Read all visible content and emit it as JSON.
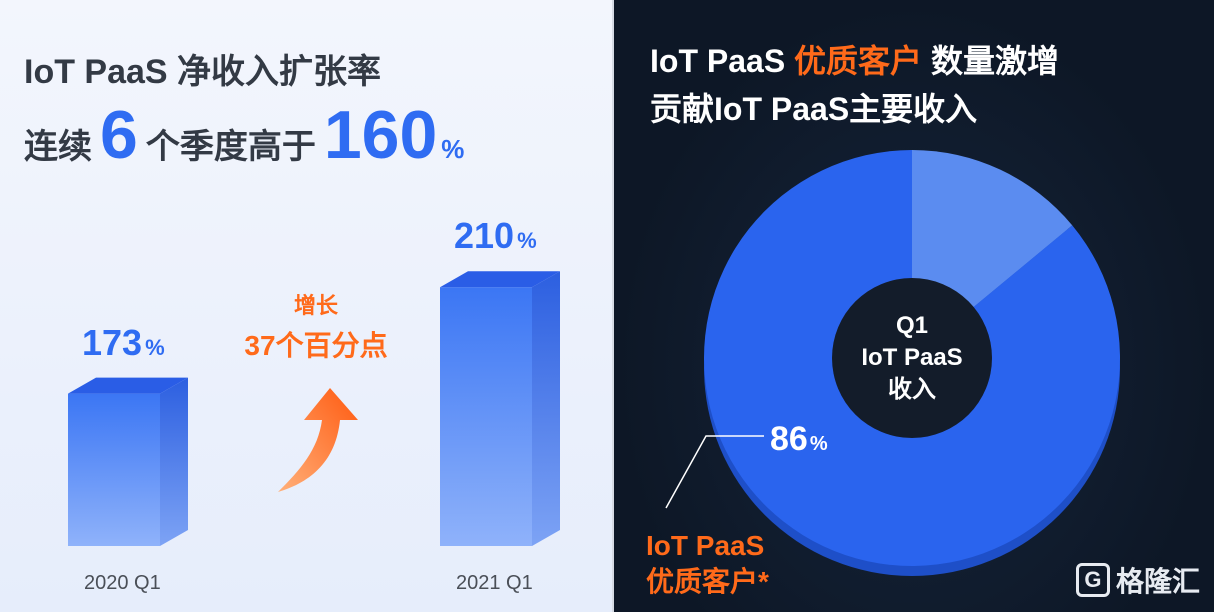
{
  "left_chart": {
    "title": "IoT PaaS  净收入扩张率",
    "subtitle_prefix": "连续",
    "subtitle_num": "6",
    "subtitle_mid": "个季度高于",
    "subtitle_value": "160",
    "subtitle_pct": "%",
    "growth_line1": "增长",
    "growth_line2": "37个百分点",
    "pct_symbol": "%"
  },
  "right_chart": {
    "title_part1": "IoT PaaS ",
    "title_highlight": "优质客户",
    "title_part2": " 数量激增",
    "title_line2": "贡献IoT PaaS主要收入",
    "center_line1": "Q1",
    "center_line2": "IoT PaaS",
    "center_line3": "收入",
    "slice_value": "86",
    "slice_pct": "%",
    "legend_line1": "IoT PaaS",
    "legend_line2": "优质客户*",
    "watermark_text": "格隆汇",
    "watermark_icon": "G"
  },
  "chart_data": [
    {
      "type": "bar",
      "categories": [
        "2020 Q1",
        "2021 Q1"
      ],
      "values": [
        173,
        210
      ],
      "unit": "%",
      "ylim": [
        0,
        230
      ],
      "colors": [
        "#2f6cf2",
        "#5b8ff7"
      ]
    },
    {
      "type": "pie",
      "slices": [
        {
          "name": "IoT PaaS 优质客户*",
          "value": 86,
          "color": "#2a64ee"
        },
        {
          "name": "",
          "value": 14,
          "color": "#5b8cf0"
        }
      ]
    }
  ],
  "colors": {
    "accent_blue": "#2f6cf2",
    "accent_orange": "#ff6a1a"
  }
}
